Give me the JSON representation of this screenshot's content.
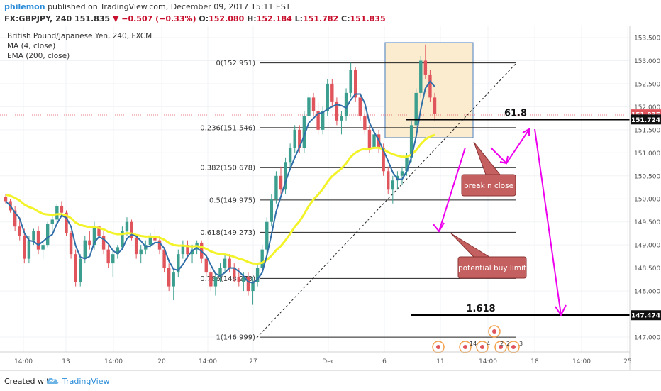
{
  "header": {
    "user": "philemon",
    "published": "published on TradingView.com, December 09, 2017 15:11 EST",
    "symbol": "FX:GBPJPY, 240",
    "last": "151.835",
    "change": "−0.507 (−0.33%)",
    "o_label": "O:",
    "o_value": "152.080",
    "h_label": "H:",
    "h_value": "152.184",
    "l_label": "L:",
    "l_value": "151.782",
    "c_label": "C:",
    "c_value": "151.835"
  },
  "legend": {
    "title": "British Pound/Japanese Yen, 240, FXCM",
    "ma": "MA (4, close)",
    "ema": "EMA (200, close)"
  },
  "footer": {
    "created": "Created with",
    "brand": "TradingView"
  },
  "colors": {
    "up": "#3b9e8e",
    "down": "#e0545c",
    "ma": "#2f6ea8",
    "ema": "#f3f32a",
    "fib": "#222222",
    "annotation": "#ee00ee",
    "callout_fill": "#c56060",
    "box_fill": "#fbecd0",
    "box_stroke": "#4a7fc1",
    "price_tag_red": "#e0545c",
    "price_tag_black": "#111111"
  },
  "chart_data": {
    "type": "candlestick",
    "title": "British Pound/Japanese Yen, 240, FXCM",
    "ylim": [
      146.8,
      153.55
    ],
    "y_ticks": [
      "153.500",
      "153.000",
      "152.500",
      "152.000",
      "151.500",
      "151.000",
      "150.500",
      "150.000",
      "149.500",
      "149.000",
      "148.500",
      "148.000",
      "147.000"
    ],
    "x_ticks": [
      "14:00",
      "13",
      "14:00",
      "20",
      "14:00",
      "27",
      "Dec",
      "6",
      "11",
      "14:00",
      "18",
      "14:00",
      "25"
    ],
    "candles": [
      [
        150.05,
        150.1,
        149.9,
        149.95
      ],
      [
        149.95,
        150.0,
        149.7,
        149.75
      ],
      [
        149.75,
        149.85,
        149.3,
        149.4
      ],
      [
        149.4,
        149.6,
        149.1,
        149.2
      ],
      [
        149.2,
        149.35,
        148.6,
        148.7
      ],
      [
        148.7,
        149.2,
        148.6,
        149.1
      ],
      [
        149.1,
        149.35,
        149.0,
        149.3
      ],
      [
        149.3,
        149.4,
        148.8,
        148.9
      ],
      [
        148.9,
        149.1,
        148.7,
        149.0
      ],
      [
        149.0,
        149.5,
        148.95,
        149.45
      ],
      [
        149.45,
        149.65,
        149.3,
        149.55
      ],
      [
        149.55,
        149.9,
        149.45,
        149.85
      ],
      [
        149.85,
        149.95,
        149.6,
        149.7
      ],
      [
        149.7,
        149.75,
        149.2,
        149.25
      ],
      [
        149.25,
        149.3,
        148.7,
        148.8
      ],
      [
        148.8,
        148.9,
        148.1,
        148.2
      ],
      [
        148.2,
        148.8,
        148.1,
        148.7
      ],
      [
        148.7,
        149.2,
        148.6,
        149.1
      ],
      [
        149.1,
        149.3,
        148.9,
        149.0
      ],
      [
        149.0,
        149.5,
        148.9,
        149.4
      ],
      [
        149.4,
        149.5,
        149.1,
        149.2
      ],
      [
        149.2,
        149.3,
        148.8,
        148.9
      ],
      [
        148.9,
        149.0,
        148.5,
        148.6
      ],
      [
        148.6,
        148.9,
        148.3,
        148.8
      ],
      [
        148.8,
        149.0,
        148.7,
        148.95
      ],
      [
        148.95,
        149.4,
        148.9,
        149.3
      ],
      [
        149.3,
        149.6,
        149.2,
        149.5
      ],
      [
        149.5,
        149.55,
        149.1,
        149.15
      ],
      [
        149.15,
        149.2,
        148.7,
        148.8
      ],
      [
        148.8,
        149.0,
        148.6,
        148.9
      ],
      [
        148.9,
        149.1,
        148.8,
        149.0
      ],
      [
        149.0,
        149.25,
        148.95,
        149.2
      ],
      [
        149.2,
        149.35,
        149.0,
        149.1
      ],
      [
        149.1,
        149.2,
        148.8,
        148.9
      ],
      [
        148.9,
        148.95,
        148.4,
        148.5
      ],
      [
        148.5,
        148.6,
        148.0,
        148.1
      ],
      [
        148.1,
        148.5,
        147.8,
        148.4
      ],
      [
        148.4,
        148.9,
        148.3,
        148.8
      ],
      [
        148.8,
        149.1,
        148.7,
        149.0
      ],
      [
        149.0,
        149.1,
        148.7,
        148.8
      ],
      [
        148.8,
        149.0,
        148.6,
        148.9
      ],
      [
        148.9,
        149.1,
        148.8,
        149.05
      ],
      [
        149.05,
        149.1,
        148.6,
        148.7
      ],
      [
        148.7,
        148.8,
        148.3,
        148.4
      ],
      [
        148.4,
        148.5,
        148.0,
        148.1
      ],
      [
        148.1,
        148.4,
        147.9,
        148.3
      ],
      [
        148.3,
        148.6,
        148.2,
        148.5
      ],
      [
        148.5,
        148.8,
        148.4,
        148.7
      ],
      [
        148.7,
        148.8,
        148.4,
        148.5
      ],
      [
        148.5,
        148.6,
        148.2,
        148.3
      ],
      [
        148.3,
        148.5,
        148.1,
        148.2
      ],
      [
        148.2,
        148.4,
        148.0,
        148.3
      ],
      [
        148.3,
        148.4,
        147.9,
        148.0
      ],
      [
        148.0,
        148.3,
        147.7,
        148.2
      ],
      [
        148.2,
        148.6,
        148.1,
        148.5
      ],
      [
        148.5,
        149.0,
        148.4,
        148.9
      ],
      [
        148.9,
        149.6,
        148.8,
        149.5
      ],
      [
        149.5,
        150.1,
        149.4,
        150.0
      ],
      [
        150.0,
        150.6,
        149.9,
        150.5
      ],
      [
        150.5,
        150.7,
        150.1,
        150.2
      ],
      [
        150.2,
        150.9,
        150.1,
        150.8
      ],
      [
        150.8,
        151.2,
        150.7,
        151.1
      ],
      [
        151.1,
        151.6,
        151.0,
        151.5
      ],
      [
        151.5,
        151.6,
        151.0,
        151.1
      ],
      [
        151.1,
        151.9,
        151.0,
        151.8
      ],
      [
        151.8,
        152.3,
        151.7,
        152.2
      ],
      [
        152.2,
        152.3,
        151.8,
        151.9
      ],
      [
        151.9,
        152.1,
        151.4,
        151.5
      ],
      [
        151.5,
        152.0,
        151.4,
        151.9
      ],
      [
        151.9,
        152.6,
        151.8,
        152.5
      ],
      [
        152.5,
        152.6,
        152.0,
        152.1
      ],
      [
        152.1,
        152.2,
        151.6,
        151.7
      ],
      [
        151.7,
        151.9,
        151.4,
        151.8
      ],
      [
        151.8,
        152.4,
        151.7,
        152.3
      ],
      [
        152.3,
        152.95,
        152.2,
        152.8
      ],
      [
        152.8,
        152.85,
        152.1,
        152.2
      ],
      [
        152.2,
        152.3,
        151.7,
        151.8
      ],
      [
        151.8,
        152.0,
        151.4,
        151.5
      ],
      [
        151.5,
        151.6,
        151.0,
        151.1
      ],
      [
        151.1,
        151.5,
        150.9,
        151.4
      ],
      [
        151.4,
        151.5,
        151.0,
        151.1
      ],
      [
        151.1,
        151.2,
        150.5,
        150.6
      ],
      [
        150.6,
        150.7,
        150.1,
        150.2
      ],
      [
        150.2,
        150.5,
        149.9,
        150.4
      ],
      [
        150.4,
        150.6,
        150.2,
        150.5
      ],
      [
        150.5,
        150.7,
        150.3,
        150.6
      ],
      [
        150.6,
        151.0,
        150.5,
        150.9
      ],
      [
        150.9,
        151.7,
        150.8,
        151.6
      ],
      [
        151.6,
        152.4,
        151.5,
        152.3
      ],
      [
        152.3,
        153.1,
        152.2,
        153.0
      ],
      [
        153.0,
        153.35,
        152.6,
        152.7
      ],
      [
        152.7,
        152.8,
        152.1,
        152.2
      ],
      [
        152.2,
        152.3,
        151.7,
        151.84
      ]
    ],
    "fibonacci": [
      {
        "label": "0(152.951)",
        "value": 152.951
      },
      {
        "label": "0.236(151.546)",
        "value": 151.546
      },
      {
        "label": "0.382(150.678)",
        "value": 150.678
      },
      {
        "label": "0.5(149.975)",
        "value": 149.975
      },
      {
        "label": "0.618(149.273)",
        "value": 149.273
      },
      {
        "label": "0.786(148.273)",
        "value": 148.273
      },
      {
        "label": "1(146.999)",
        "value": 146.999
      }
    ],
    "levels": [
      {
        "label": "61.8",
        "value": 151.724
      },
      {
        "label": "1.618",
        "value": 147.474
      }
    ],
    "price_tags": [
      {
        "text": "151.835",
        "value": 151.835,
        "style": "red"
      },
      {
        "text": "151.724",
        "value": 151.724,
        "style": "black"
      },
      {
        "text": "147.474",
        "value": 147.474,
        "style": "black"
      }
    ],
    "callouts": [
      "break n close",
      "potential buy limit"
    ],
    "event_labels": [
      "14",
      "4",
      "2",
      "2",
      "3"
    ]
  }
}
